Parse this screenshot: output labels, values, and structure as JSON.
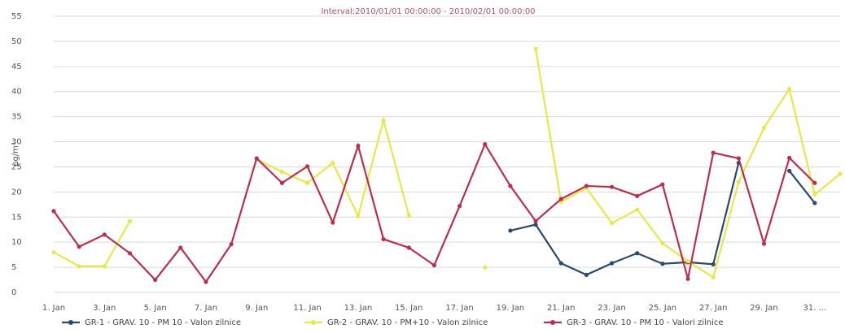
{
  "chart_data": {
    "type": "line",
    "title": "Interval:2010/01/01 00:00:00 - 2010/02/01 00:00:00",
    "ylabel": "μg/m³",
    "ylim": [
      0,
      55
    ],
    "yticks": [
      0,
      5,
      10,
      15,
      20,
      25,
      30,
      35,
      40,
      45,
      50,
      55
    ],
    "xlim": [
      1,
      32
    ],
    "xticks": [
      {
        "x": 1,
        "label": "1. Jan"
      },
      {
        "x": 3,
        "label": "3. Jan"
      },
      {
        "x": 5,
        "label": "5. Jan"
      },
      {
        "x": 7,
        "label": "7. Jan"
      },
      {
        "x": 9,
        "label": "9. Jan"
      },
      {
        "x": 11,
        "label": "11. Jan"
      },
      {
        "x": 13,
        "label": "13. Jan"
      },
      {
        "x": 15,
        "label": "15. Jan"
      },
      {
        "x": 17,
        "label": "17. Jan"
      },
      {
        "x": 19,
        "label": "19. Jan"
      },
      {
        "x": 21,
        "label": "21. Jan"
      },
      {
        "x": 23,
        "label": "23. Jan"
      },
      {
        "x": 25,
        "label": "25. Jan"
      },
      {
        "x": 27,
        "label": "27. Jan"
      },
      {
        "x": 29,
        "label": "29. Jan"
      },
      {
        "x": 31,
        "label": "31. ..."
      }
    ],
    "grid": true,
    "legend": "bottom",
    "series": [
      {
        "name": "GR-1 - GRAV. 10 - PM 10 - Valon zilnice",
        "color": "#2b4a6b",
        "points": [
          [
            19,
            12.3
          ],
          [
            20,
            13.5
          ],
          [
            21,
            5.8
          ],
          [
            22,
            3.5
          ],
          [
            23,
            5.8
          ],
          [
            24,
            7.8
          ],
          [
            25,
            5.7
          ],
          [
            26,
            6.0
          ],
          [
            27,
            5.6
          ],
          [
            28,
            25.8
          ],
          [
            29,
            null
          ],
          [
            30,
            24.2
          ],
          [
            31,
            17.8
          ]
        ]
      },
      {
        "name": "GR-2 - GRAV. 10 - PM+10 - Valon zilnice",
        "color": "#e6e84a",
        "points": [
          [
            1,
            8.0
          ],
          [
            2,
            5.2
          ],
          [
            3,
            5.2
          ],
          [
            4,
            14.2
          ],
          [
            5,
            null
          ],
          [
            6,
            null
          ],
          [
            7,
            null
          ],
          [
            8,
            null
          ],
          [
            9,
            26.5
          ],
          [
            10,
            24.0
          ],
          [
            11,
            21.8
          ],
          [
            12,
            25.8
          ],
          [
            13,
            15.2
          ],
          [
            14,
            34.3
          ],
          [
            15,
            15.3
          ],
          [
            16,
            null
          ],
          [
            17,
            null
          ],
          [
            18,
            5.0
          ],
          [
            19,
            null
          ],
          [
            20,
            48.5
          ],
          [
            21,
            18.0
          ],
          [
            22,
            20.8
          ],
          [
            23,
            13.8
          ],
          [
            24,
            16.5
          ],
          [
            25,
            9.8
          ],
          [
            26,
            6.2
          ],
          [
            27,
            3.0
          ],
          [
            28,
            22.0
          ],
          [
            29,
            32.8
          ],
          [
            30,
            40.5
          ],
          [
            31,
            19.5
          ],
          [
            32,
            23.6
          ]
        ]
      },
      {
        "name": "GR-3 - GRAV. 10 - PM 10 - Valori zilnice",
        "color": "#b8304a",
        "points": [
          [
            1,
            16.2
          ],
          [
            2,
            9.1
          ],
          [
            3,
            11.5
          ],
          [
            4,
            7.8
          ],
          [
            5,
            2.5
          ],
          [
            6,
            8.9
          ],
          [
            7,
            2.1
          ],
          [
            8,
            9.6
          ],
          [
            9,
            26.7
          ],
          [
            10,
            21.8
          ],
          [
            11,
            25.1
          ],
          [
            12,
            13.9
          ],
          [
            13,
            29.2
          ],
          [
            14,
            10.6
          ],
          [
            15,
            8.9
          ],
          [
            16,
            5.4
          ],
          [
            17,
            17.2
          ],
          [
            18,
            29.5
          ],
          [
            19,
            21.2
          ],
          [
            20,
            14.2
          ],
          [
            21,
            18.6
          ],
          [
            22,
            21.2
          ],
          [
            23,
            21.0
          ],
          [
            24,
            19.2
          ],
          [
            25,
            21.5
          ],
          [
            26,
            2.7
          ],
          [
            27,
            27.8
          ],
          [
            28,
            26.7
          ],
          [
            29,
            9.7
          ],
          [
            30,
            26.8
          ],
          [
            31,
            21.8
          ]
        ]
      }
    ]
  }
}
